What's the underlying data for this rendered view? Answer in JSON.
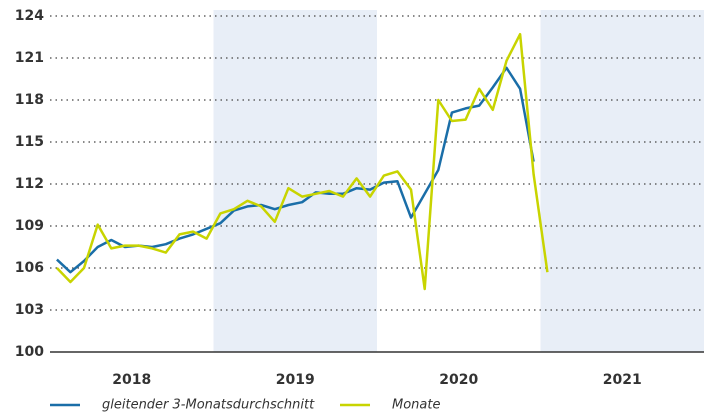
{
  "chart_data": {
    "type": "line",
    "xlim": [
      2018,
      2022
    ],
    "xticks": [
      {
        "value": 2018.5,
        "label": "2018"
      },
      {
        "value": 2019.5,
        "label": "2019"
      },
      {
        "value": 2020.5,
        "label": "2020"
      },
      {
        "value": 2021.5,
        "label": "2021"
      }
    ],
    "shaded_bands": [
      [
        2019,
        2020
      ],
      [
        2021,
        2022
      ]
    ],
    "ylim": [
      100,
      124
    ],
    "yticks": [
      100,
      103,
      106,
      109,
      112,
      115,
      118,
      121,
      124
    ],
    "grid": true,
    "legend": "bottom",
    "series": [
      {
        "name": "gleitender 3-Monatsdurchschnitt",
        "color": "#1a6ea8",
        "x": [
          2018.042,
          2018.125,
          2018.208,
          2018.292,
          2018.375,
          2018.458,
          2018.542,
          2018.625,
          2018.708,
          2018.792,
          2018.875,
          2018.958,
          2019.042,
          2019.125,
          2019.208,
          2019.292,
          2019.375,
          2019.458,
          2019.542,
          2019.625,
          2019.708,
          2019.792,
          2019.875,
          2019.958,
          2020.042,
          2020.125,
          2020.208,
          2020.292,
          2020.375,
          2020.458,
          2020.542,
          2020.625,
          2020.708,
          2020.792,
          2020.875,
          2020.958
        ],
        "values": [
          106.6,
          105.7,
          106.5,
          107.5,
          108.0,
          107.5,
          107.6,
          107.5,
          107.7,
          108.1,
          108.4,
          108.8,
          109.2,
          110.1,
          110.4,
          110.5,
          110.2,
          110.5,
          110.7,
          111.4,
          111.3,
          111.3,
          111.7,
          111.6,
          112.1,
          112.2,
          109.6,
          111.3,
          113.0,
          117.1,
          117.4,
          117.6,
          118.9,
          120.3,
          118.8,
          113.6
        ]
      },
      {
        "name": "Monate",
        "color": "#c8d400",
        "x": [
          2018.042,
          2018.125,
          2018.208,
          2018.292,
          2018.375,
          2018.458,
          2018.542,
          2018.625,
          2018.708,
          2018.792,
          2018.875,
          2018.958,
          2019.042,
          2019.125,
          2019.208,
          2019.292,
          2019.375,
          2019.458,
          2019.542,
          2019.625,
          2019.708,
          2019.792,
          2019.875,
          2019.958,
          2020.042,
          2020.125,
          2020.208,
          2020.292,
          2020.375,
          2020.458,
          2020.542,
          2020.625,
          2020.708,
          2020.792,
          2020.875,
          2020.958,
          2021.042
        ],
        "values": [
          106.0,
          105.0,
          106.0,
          109.1,
          107.4,
          107.6,
          107.6,
          107.4,
          107.1,
          108.4,
          108.6,
          108.1,
          109.9,
          110.2,
          110.8,
          110.4,
          109.3,
          111.7,
          111.1,
          111.3,
          111.5,
          111.1,
          112.4,
          111.1,
          112.6,
          112.9,
          111.6,
          104.5,
          118.0,
          116.5,
          116.6,
          118.8,
          117.3,
          120.8,
          122.7,
          112.7,
          105.7
        ]
      }
    ]
  }
}
